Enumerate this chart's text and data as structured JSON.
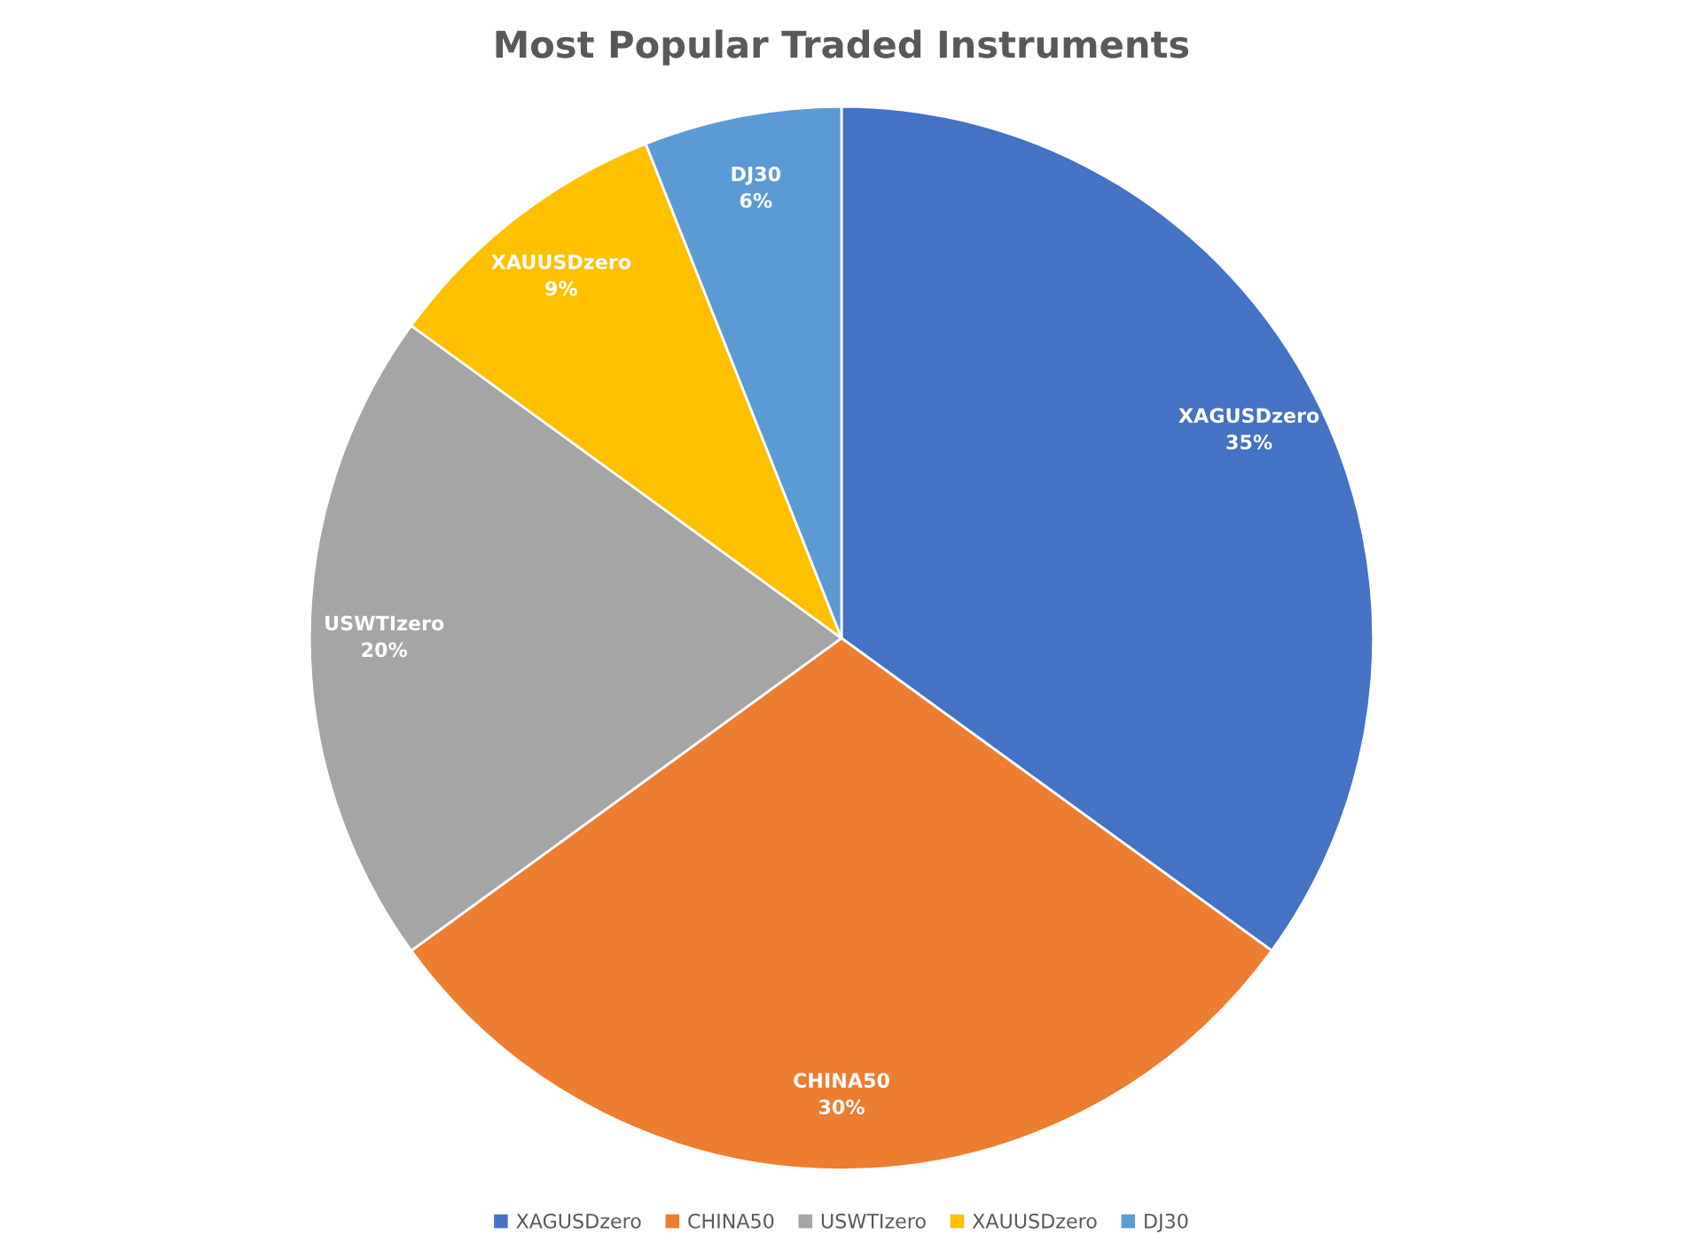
{
  "chart_data": {
    "type": "pie",
    "title": "Most Popular Traded Instruments",
    "categories": [
      "XAGUSDzero",
      "CHINA50",
      "USWTIzero",
      "XAUUSDzero",
      "DJ30"
    ],
    "values": [
      35,
      30,
      20,
      9,
      6
    ],
    "colors": [
      "#4472c4",
      "#ed7d31",
      "#a5a5a5",
      "#ffc000",
      "#5b9bd5"
    ],
    "value_labels": [
      "35%",
      "30%",
      "20%",
      "9%",
      "6%"
    ],
    "legend": "bottom"
  }
}
